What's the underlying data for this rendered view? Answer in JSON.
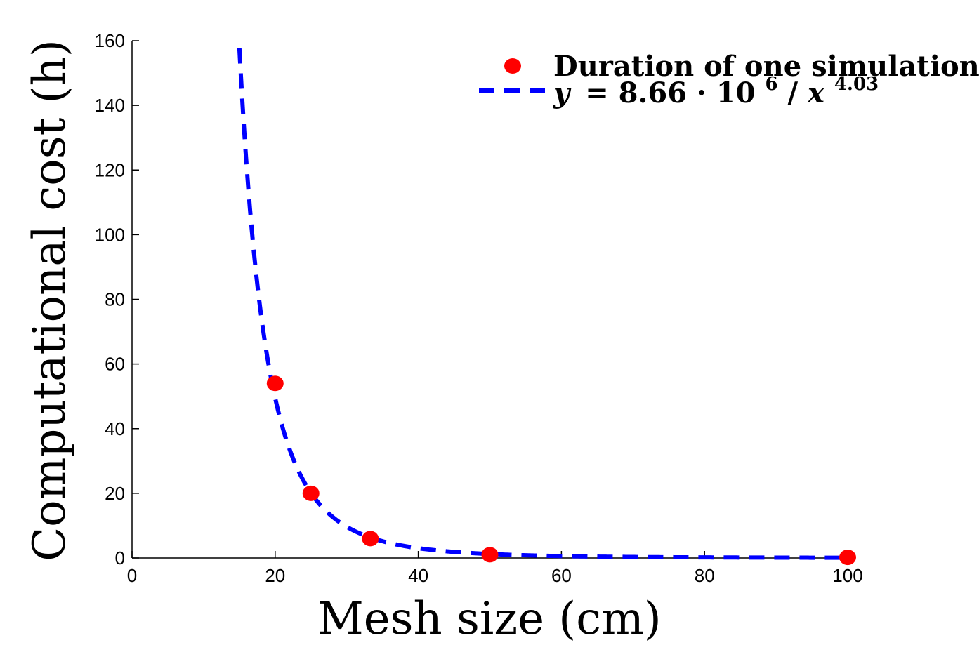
{
  "chart_data": {
    "type": "scatter",
    "title": "",
    "xlabel": "Mesh size (cm)",
    "ylabel": "Computational cost (h)",
    "xlim": [
      0,
      100
    ],
    "ylim": [
      0,
      160
    ],
    "x_ticks": [
      0,
      20,
      40,
      60,
      80,
      100
    ],
    "y_ticks": [
      0,
      20,
      40,
      60,
      80,
      100,
      120,
      140,
      160
    ],
    "grid": false,
    "legend_position": "top-right",
    "series": [
      {
        "name": "Duration of one simulation",
        "kind": "markers",
        "color": "#ff0000",
        "x": [
          20,
          25,
          33.3,
          50,
          100
        ],
        "y": [
          54,
          20,
          6,
          1,
          0.2
        ]
      },
      {
        "name": "y = 8.66 · 10^6 / x^4.03",
        "kind": "dashed-line",
        "color": "#0000ff",
        "fit": {
          "coefficient": 8660000,
          "exponent": 4.03,
          "x_from": 15,
          "x_to": 100
        }
      }
    ],
    "legend": {
      "marker_label": "Duration of one simulation",
      "fit_label": {
        "y": "y",
        "eq": "= 8.66 · 10",
        "exp1": "6",
        "slash": "/",
        "x": "x",
        "exp2": "4.03"
      }
    }
  }
}
